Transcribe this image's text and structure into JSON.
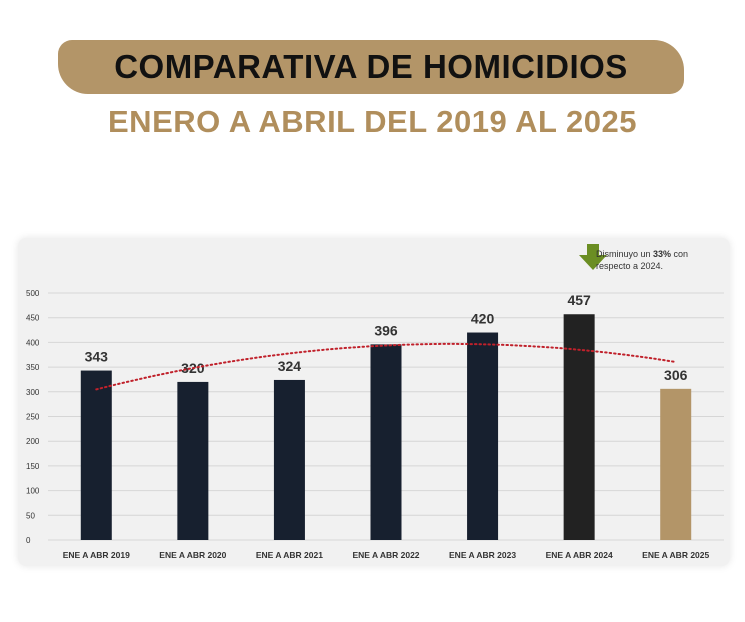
{
  "title": "COMPARATIVA DE HOMICIDIOS",
  "subtitle": "ENERO A ABRIL DEL 2019 AL 2025",
  "note": {
    "prefix": "Disminuyo un ",
    "highlight": "33%",
    "suffix": " con respecto a 2024."
  },
  "colors": {
    "banner": "#b39568",
    "subtitle": "#b08e5c",
    "bar_dark": "#17202f",
    "bar_2024": "#222222",
    "bar_2025": "#b39568",
    "trend": "#c0212b",
    "arrow": "#6b8e23"
  },
  "chart_data": {
    "type": "bar",
    "categories": [
      "ENE A ABR 2019",
      "ENE A ABR 2020",
      "ENE A ABR 2021",
      "ENE A ABR 2022",
      "ENE A ABR 2023",
      "ENE A ABR 2024",
      "ENE A ABR 2025"
    ],
    "values": [
      343,
      320,
      324,
      396,
      420,
      457,
      306
    ],
    "data_labels": [
      "343",
      "320",
      "324",
      "396",
      "420",
      "457",
      "306"
    ],
    "yticks": [
      0,
      50,
      100,
      150,
      200,
      250,
      300,
      350,
      400,
      450,
      500
    ],
    "ylim": [
      0,
      500
    ],
    "grid": true,
    "trendline": "polynomial",
    "title": "",
    "xlabel": "",
    "ylabel": ""
  }
}
